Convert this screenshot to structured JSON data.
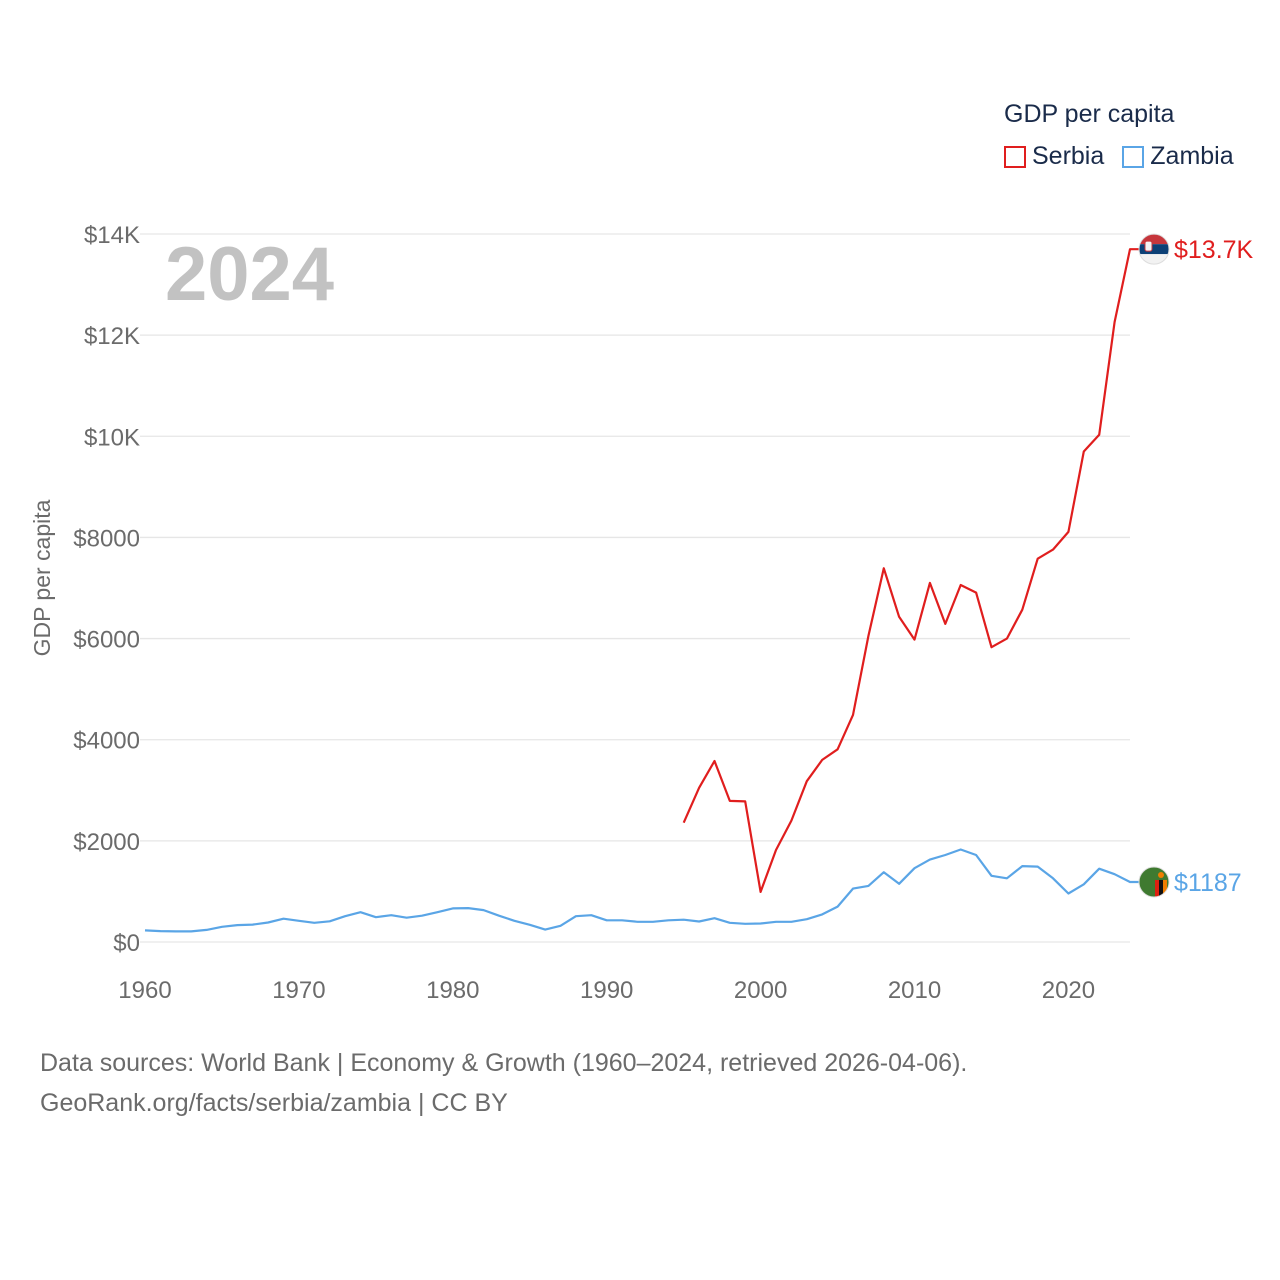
{
  "legend": {
    "title": "GDP per capita",
    "items": [
      {
        "label": "Serbia",
        "color": "#e01e1e"
      },
      {
        "label": "Zambia",
        "color": "#5aa5e6"
      }
    ]
  },
  "footer": {
    "line1": "Data sources: World Bank | Economy & Growth (1960–2024, retrieved 2026-04-06).",
    "line2": "GeoRank.org/facts/serbia/zambia | CC BY"
  },
  "chart_data": {
    "type": "line",
    "title": "GDP per capita",
    "year_label": "2024",
    "xlabel": "",
    "ylabel": "GDP per capita",
    "xlim": [
      1960,
      2024
    ],
    "ylim": [
      0,
      14000
    ],
    "x_ticks": [
      1960,
      1970,
      1980,
      1990,
      2000,
      2010,
      2020
    ],
    "y_ticks": [
      {
        "value": 0,
        "label": "$0"
      },
      {
        "value": 2000,
        "label": "$2000"
      },
      {
        "value": 4000,
        "label": "$4000"
      },
      {
        "value": 6000,
        "label": "$6000"
      },
      {
        "value": 8000,
        "label": "$8000"
      },
      {
        "value": 10000,
        "label": "$10K"
      },
      {
        "value": 12000,
        "label": "$12K"
      },
      {
        "value": 14000,
        "label": "$14K"
      }
    ],
    "series": [
      {
        "name": "Serbia",
        "color": "#e01e1e",
        "end_label": "$13.7K",
        "flag": "serbia-flag",
        "x": [
          1995,
          1996,
          1997,
          1998,
          1999,
          2000,
          2001,
          2002,
          2003,
          2004,
          2005,
          2006,
          2007,
          2008,
          2009,
          2010,
          2011,
          2012,
          2013,
          2014,
          2015,
          2016,
          2017,
          2018,
          2019,
          2020,
          2021,
          2022,
          2023,
          2024
        ],
        "values": [
          2360,
          3050,
          3580,
          2790,
          2780,
          990,
          1820,
          2400,
          3180,
          3600,
          3810,
          4490,
          6050,
          7390,
          6430,
          5980,
          7100,
          6290,
          7060,
          6910,
          5830,
          6000,
          6570,
          7580,
          7760,
          8110,
          9700,
          10030,
          12260,
          13700
        ]
      },
      {
        "name": "Zambia",
        "color": "#5aa5e6",
        "end_label": "$1187",
        "flag": "zambia-flag",
        "x": [
          1960,
          1961,
          1962,
          1963,
          1964,
          1965,
          1966,
          1967,
          1968,
          1969,
          1970,
          1971,
          1972,
          1973,
          1974,
          1975,
          1976,
          1977,
          1978,
          1979,
          1980,
          1981,
          1982,
          1983,
          1984,
          1985,
          1986,
          1987,
          1988,
          1989,
          1990,
          1991,
          1992,
          1993,
          1994,
          1995,
          1996,
          1997,
          1998,
          1999,
          2000,
          2001,
          2002,
          2003,
          2004,
          2005,
          2006,
          2007,
          2008,
          2009,
          2010,
          2011,
          2012,
          2013,
          2014,
          2015,
          2016,
          2017,
          2018,
          2019,
          2020,
          2021,
          2022,
          2023,
          2024
        ],
        "values": [
          230,
          215,
          210,
          210,
          240,
          300,
          335,
          345,
          385,
          460,
          420,
          380,
          410,
          510,
          590,
          490,
          530,
          480,
          520,
          590,
          665,
          670,
          630,
          520,
          420,
          340,
          245,
          320,
          510,
          530,
          430,
          430,
          400,
          400,
          430,
          440,
          405,
          470,
          380,
          360,
          365,
          400,
          400,
          450,
          545,
          700,
          1055,
          1110,
          1380,
          1150,
          1460,
          1630,
          1720,
          1830,
          1720,
          1310,
          1260,
          1500,
          1490,
          1260,
          960,
          1140,
          1450,
          1340,
          1187
        ]
      }
    ]
  }
}
